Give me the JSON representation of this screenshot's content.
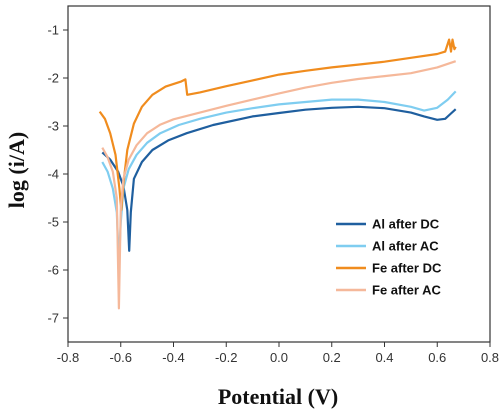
{
  "chart_data": {
    "type": "line",
    "title": "",
    "xlabel": "Potential (V)",
    "ylabel": "log (i/A)",
    "xlim": [
      -0.8,
      0.8
    ],
    "ylim": [
      -7.5,
      -0.5
    ],
    "xticks": [
      "-0.8",
      "-0.6",
      "-0.4",
      "-0.2",
      "0.0",
      "0.2",
      "0.4",
      "0.6",
      "0.8"
    ],
    "yticks": [
      "-1",
      "-2",
      "-3",
      "-4",
      "-5",
      "-6",
      "-7"
    ],
    "grid": false,
    "legend_position": "bottom-right",
    "series": [
      {
        "name": "Al after DC",
        "color": "#1f5f9f",
        "points": [
          [
            -0.67,
            -3.55
          ],
          [
            -0.64,
            -3.7
          ],
          [
            -0.61,
            -3.95
          ],
          [
            -0.59,
            -4.25
          ],
          [
            -0.575,
            -4.75
          ],
          [
            -0.568,
            -5.6
          ],
          [
            -0.562,
            -4.8
          ],
          [
            -0.55,
            -4.1
          ],
          [
            -0.52,
            -3.75
          ],
          [
            -0.48,
            -3.5
          ],
          [
            -0.42,
            -3.3
          ],
          [
            -0.35,
            -3.15
          ],
          [
            -0.25,
            -2.98
          ],
          [
            -0.1,
            -2.8
          ],
          [
            0.0,
            -2.73
          ],
          [
            0.1,
            -2.66
          ],
          [
            0.2,
            -2.62
          ],
          [
            0.3,
            -2.6
          ],
          [
            0.4,
            -2.63
          ],
          [
            0.5,
            -2.72
          ],
          [
            0.55,
            -2.8
          ],
          [
            0.6,
            -2.87
          ],
          [
            0.63,
            -2.85
          ],
          [
            0.65,
            -2.75
          ],
          [
            0.67,
            -2.65
          ]
        ]
      },
      {
        "name": "Al after AC",
        "color": "#7fcdf0",
        "points": [
          [
            -0.67,
            -3.75
          ],
          [
            -0.65,
            -3.95
          ],
          [
            -0.63,
            -4.3
          ],
          [
            -0.615,
            -4.8
          ],
          [
            -0.607,
            -5.85
          ],
          [
            -0.6,
            -5.0
          ],
          [
            -0.59,
            -4.3
          ],
          [
            -0.57,
            -3.9
          ],
          [
            -0.54,
            -3.6
          ],
          [
            -0.5,
            -3.35
          ],
          [
            -0.45,
            -3.15
          ],
          [
            -0.38,
            -2.98
          ],
          [
            -0.3,
            -2.85
          ],
          [
            -0.2,
            -2.72
          ],
          [
            -0.1,
            -2.63
          ],
          [
            0.0,
            -2.55
          ],
          [
            0.1,
            -2.5
          ],
          [
            0.2,
            -2.45
          ],
          [
            0.3,
            -2.45
          ],
          [
            0.4,
            -2.5
          ],
          [
            0.5,
            -2.6
          ],
          [
            0.55,
            -2.68
          ],
          [
            0.6,
            -2.62
          ],
          [
            0.64,
            -2.45
          ],
          [
            0.67,
            -2.28
          ]
        ]
      },
      {
        "name": "Fe after DC",
        "color": "#f08c1e",
        "points": [
          [
            -0.68,
            -2.7
          ],
          [
            -0.66,
            -2.85
          ],
          [
            -0.64,
            -3.15
          ],
          [
            -0.62,
            -3.6
          ],
          [
            -0.605,
            -4.3
          ],
          [
            -0.598,
            -4.75
          ],
          [
            -0.59,
            -4.2
          ],
          [
            -0.575,
            -3.5
          ],
          [
            -0.55,
            -2.95
          ],
          [
            -0.52,
            -2.6
          ],
          [
            -0.48,
            -2.35
          ],
          [
            -0.43,
            -2.18
          ],
          [
            -0.37,
            -2.07
          ],
          [
            -0.355,
            -2.03
          ],
          [
            -0.348,
            -2.35
          ],
          [
            -0.3,
            -2.3
          ],
          [
            -0.2,
            -2.17
          ],
          [
            -0.1,
            -2.05
          ],
          [
            0.0,
            -1.93
          ],
          [
            0.1,
            -1.85
          ],
          [
            0.2,
            -1.78
          ],
          [
            0.3,
            -1.72
          ],
          [
            0.4,
            -1.66
          ],
          [
            0.5,
            -1.58
          ],
          [
            0.6,
            -1.5
          ],
          [
            0.63,
            -1.45
          ],
          [
            0.645,
            -1.2
          ],
          [
            0.652,
            -1.45
          ],
          [
            0.658,
            -1.2
          ],
          [
            0.665,
            -1.4
          ],
          [
            0.67,
            -1.35
          ]
        ]
      },
      {
        "name": "Fe after AC",
        "color": "#f5b89a",
        "points": [
          [
            -0.67,
            -3.45
          ],
          [
            -0.65,
            -3.65
          ],
          [
            -0.63,
            -3.95
          ],
          [
            -0.615,
            -4.5
          ],
          [
            -0.607,
            -6.8
          ],
          [
            -0.6,
            -4.7
          ],
          [
            -0.59,
            -4.1
          ],
          [
            -0.57,
            -3.7
          ],
          [
            -0.54,
            -3.4
          ],
          [
            -0.5,
            -3.15
          ],
          [
            -0.45,
            -2.97
          ],
          [
            -0.4,
            -2.86
          ],
          [
            -0.3,
            -2.72
          ],
          [
            -0.2,
            -2.58
          ],
          [
            -0.1,
            -2.45
          ],
          [
            0.0,
            -2.32
          ],
          [
            0.1,
            -2.2
          ],
          [
            0.2,
            -2.1
          ],
          [
            0.3,
            -2.02
          ],
          [
            0.4,
            -1.96
          ],
          [
            0.5,
            -1.9
          ],
          [
            0.6,
            -1.78
          ],
          [
            0.67,
            -1.65
          ]
        ]
      }
    ]
  }
}
